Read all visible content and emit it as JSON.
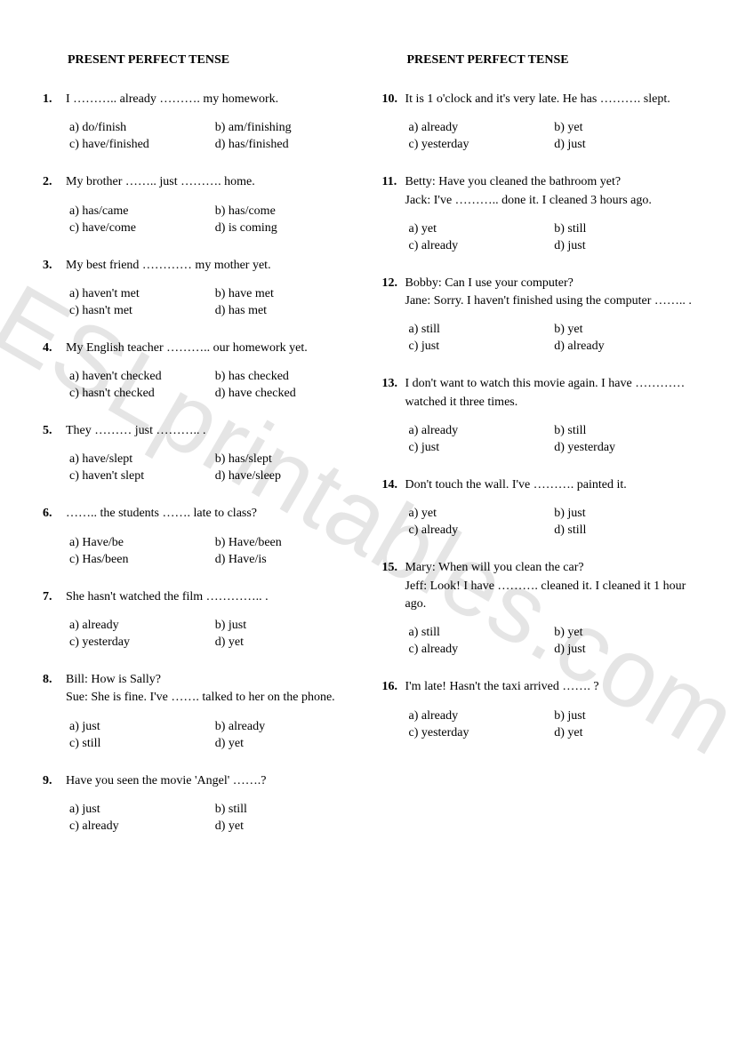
{
  "watermark": "ESLprintables.com",
  "left": {
    "title": "PRESENT PERFECT TENSE",
    "questions": [
      {
        "num": "1.",
        "stem": "I ……….. already ………. my homework.",
        "opts": [
          "a) do/finish",
          "b) am/finishing",
          "c) have/finished",
          "d) has/finished"
        ]
      },
      {
        "num": "2.",
        "stem": "My brother …….. just ………. home.",
        "opts": [
          "a) has/came",
          "b) has/come",
          "c) have/come",
          "d) is coming"
        ]
      },
      {
        "num": "3.",
        "stem": "My best friend ………… my mother yet.",
        "opts": [
          "a) haven't met",
          "b) have met",
          "c) hasn't met",
          "d) has met"
        ]
      },
      {
        "num": "4.",
        "stem": "My English teacher ……….. our homework yet.",
        "opts": [
          "a) haven't checked",
          "b) has checked",
          "c) hasn't checked",
          "d) have checked"
        ]
      },
      {
        "num": "5.",
        "stem": "They ……… just ……….. .",
        "opts": [
          "a) have/slept",
          "b) has/slept",
          "c) haven't slept",
          "d) have/sleep"
        ]
      },
      {
        "num": "6.",
        "stem": "…….. the students ……. late to class?",
        "opts": [
          "a) Have/be",
          "b) Have/been",
          "c) Has/been",
          "d) Have/is"
        ]
      },
      {
        "num": "7.",
        "stem": "She hasn't watched the film ………….. .",
        "opts": [
          "a) already",
          "b) just",
          "c) yesterday",
          "d) yet"
        ]
      },
      {
        "num": "8.",
        "stem": "Bill: How is Sally?\nSue: She is fine. I've ……. talked to her on the phone.",
        "opts": [
          "a) just",
          "b) already",
          "c) still",
          "d) yet"
        ]
      },
      {
        "num": "9.",
        "stem": "Have you seen the movie 'Angel' …….?",
        "opts": [
          "a) just",
          "b) still",
          "c) already",
          "d) yet"
        ]
      }
    ]
  },
  "right": {
    "title": "PRESENT PERFECT TENSE",
    "questions": [
      {
        "num": "10.",
        "stem": "It is 1 o'clock and it's very late. He has ………. slept.",
        "opts": [
          "a) already",
          "b) yet",
          "c) yesterday",
          "d) just"
        ]
      },
      {
        "num": "11.",
        "stem": "Betty: Have you cleaned the bathroom yet?\nJack: I've ……….. done it. I cleaned 3 hours ago.",
        "opts": [
          "a) yet",
          "b) still",
          "c) already",
          "d) just"
        ]
      },
      {
        "num": "12.",
        "stem": "Bobby: Can I use your computer?\nJane: Sorry. I haven't finished using the computer …….. .",
        "opts": [
          "a) still",
          "b) yet",
          "c) just",
          "d) already"
        ]
      },
      {
        "num": "13.",
        "stem": "I don't want to watch this movie again. I have ………… watched it three times.",
        "opts": [
          "a) already",
          "b) still",
          "c) just",
          "d) yesterday"
        ]
      },
      {
        "num": "14.",
        "stem": "Don't touch the wall. I've ………. painted it.",
        "opts": [
          "a) yet",
          "b) just",
          "c) already",
          "d) still"
        ]
      },
      {
        "num": "15.",
        "stem": "Mary: When will you clean the car?\nJeff: Look! I have ………. cleaned it. I cleaned it 1 hour ago.",
        "opts": [
          "a) still",
          "b) yet",
          "c) already",
          "d) just"
        ]
      },
      {
        "num": "16.",
        "stem": "I'm late! Hasn't the taxi arrived ……. ?",
        "opts": [
          "a) already",
          "b) just",
          "c) yesterday",
          "d) yet"
        ]
      }
    ]
  }
}
